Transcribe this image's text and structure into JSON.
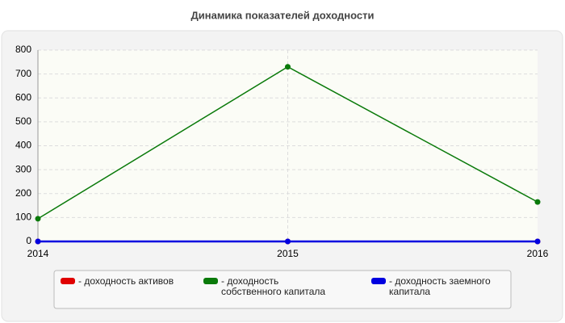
{
  "chart_data": {
    "type": "line",
    "title": "Динамика показателей доходности",
    "categories": [
      "2014",
      "2015",
      "2016"
    ],
    "series": [
      {
        "name": "- доходность активов",
        "color": "#e00000",
        "values": [
          0,
          0,
          0
        ]
      },
      {
        "name": "- доходность собственного капитала",
        "color": "#0a7a0a",
        "values": [
          95,
          730,
          165
        ]
      },
      {
        "name": "- доходность заемного капитала",
        "color": "#0000e0",
        "values": [
          0,
          0,
          0
        ]
      }
    ],
    "ylim": [
      0,
      800
    ],
    "yticks": [
      0,
      100,
      200,
      300,
      400,
      500,
      600,
      700,
      800
    ],
    "grid": true
  }
}
